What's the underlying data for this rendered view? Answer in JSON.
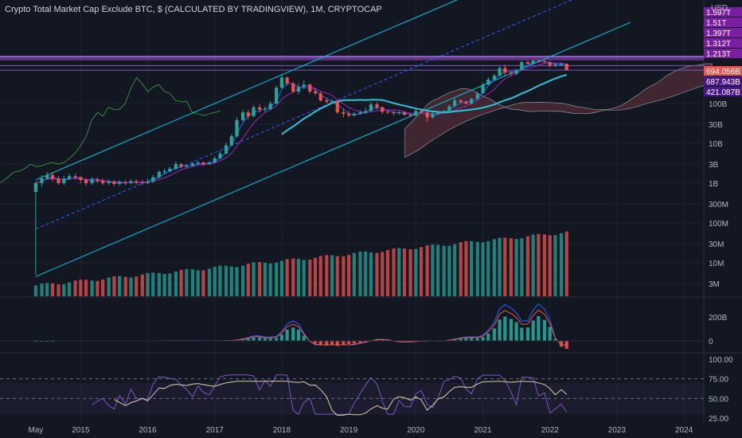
{
  "title": "Crypto Total Market Cap Exclude BTC, $ (CALCULATED BY TRADINGVIEW), 1M, CRYPTOCAP",
  "currency": "USD",
  "colors": {
    "background": "#131722",
    "grid": "#1e222d",
    "up": "#26a69a",
    "down": "#ef5350",
    "channel": "#00bcd4",
    "ichimoku_lagging": "#4caf50",
    "cloud": "#4a2a35",
    "resistance_band": "#9c4dcc",
    "ma_long": "#26c6da",
    "ma_short": "#2962ff",
    "ma_mid": "#9c27b0",
    "macd": "#2962ff",
    "signal": "#ef5350",
    "rsi": "#7e57c2",
    "rsi_ma": "#e0d0a8"
  },
  "price_badges": [
    {
      "label": "1.597T",
      "color": "#7b1fa2"
    },
    {
      "label": "1.51T",
      "color": "#7b1fa2"
    },
    {
      "label": "1.397T",
      "color": "#7b1fa2"
    },
    {
      "label": "1.312T",
      "color": "#7b1fa2"
    },
    {
      "label": "1.213T",
      "color": "#7b1fa2"
    },
    {
      "label": "694.056B",
      "color": "#ef5350"
    },
    {
      "label": "687.943B",
      "color": "#4a148c"
    },
    {
      "label": "421.087B",
      "color": "#4a148c"
    }
  ],
  "macd_ticks": [
    "200B",
    "0"
  ],
  "rsi_ticks": [
    "100.00",
    "75.00",
    "50.00",
    "25.00"
  ],
  "chart_data": [
    {
      "type": "candlestick",
      "scale": "log",
      "ylabel": "USD",
      "yticks": [
        "100B",
        "30B",
        "10B",
        "3B",
        "1B",
        "300M",
        "100M",
        "30M",
        "10M",
        "3M"
      ],
      "x_ticks": [
        "May",
        "2015",
        "2016",
        "2017",
        "2018",
        "2019",
        "2020",
        "2021",
        "2022",
        "2023",
        "2024"
      ],
      "timeframe": "1M",
      "range_usd": [
        "3M",
        "1.6T"
      ],
      "last_close": "694.056B",
      "monthly_candles": [
        [
          2014.33,
          0.6,
          1.0,
          0.005,
          1.1
        ],
        [
          2014.42,
          1.0,
          1.3,
          0.8,
          1.6
        ],
        [
          2014.5,
          1.3,
          1.6,
          1.2,
          1.9
        ],
        [
          2014.58,
          1.6,
          1.3,
          1.1,
          1.8
        ],
        [
          2014.67,
          1.3,
          1.0,
          0.9,
          1.5
        ],
        [
          2014.75,
          1.0,
          1.3,
          0.9,
          1.5
        ],
        [
          2014.83,
          1.3,
          1.5,
          1.2,
          1.7
        ],
        [
          2014.92,
          1.5,
          1.4,
          1.2,
          1.7
        ],
        [
          2015.0,
          1.4,
          1.2,
          1.0,
          1.5
        ],
        [
          2015.08,
          1.2,
          1.0,
          0.85,
          1.35
        ],
        [
          2015.17,
          1.0,
          1.25,
          0.9,
          1.4
        ],
        [
          2015.25,
          1.25,
          1.15,
          1.0,
          1.4
        ],
        [
          2015.33,
          1.15,
          1.0,
          0.9,
          1.3
        ],
        [
          2015.42,
          1.0,
          1.1,
          0.9,
          1.25
        ],
        [
          2015.5,
          1.1,
          0.95,
          0.85,
          1.2
        ],
        [
          2015.58,
          0.95,
          1.05,
          0.85,
          1.2
        ],
        [
          2015.67,
          1.05,
          1.0,
          0.9,
          1.2
        ],
        [
          2015.75,
          1.0,
          1.12,
          0.92,
          1.25
        ],
        [
          2015.83,
          1.12,
          1.05,
          0.9,
          1.25
        ],
        [
          2015.92,
          1.05,
          1.0,
          0.9,
          1.2
        ],
        [
          2016.0,
          1.0,
          1.1,
          0.95,
          1.3
        ],
        [
          2016.08,
          1.1,
          1.4,
          1.0,
          1.6
        ],
        [
          2016.17,
          1.4,
          1.9,
          1.3,
          2.1
        ],
        [
          2016.25,
          1.9,
          2.0,
          1.7,
          2.3
        ],
        [
          2016.33,
          2.0,
          2.3,
          1.9,
          2.6
        ],
        [
          2016.42,
          2.3,
          3.0,
          2.2,
          3.5
        ],
        [
          2016.5,
          3.0,
          2.6,
          2.4,
          3.2
        ],
        [
          2016.58,
          2.6,
          2.7,
          2.4,
          3.0
        ],
        [
          2016.67,
          2.7,
          3.1,
          2.6,
          3.4
        ],
        [
          2016.75,
          3.1,
          3.3,
          2.9,
          3.6
        ],
        [
          2016.83,
          3.3,
          3.0,
          2.7,
          3.5
        ],
        [
          2016.92,
          3.0,
          3.3,
          2.9,
          3.6
        ],
        [
          2017.0,
          3.3,
          4.2,
          3.1,
          4.8
        ],
        [
          2017.08,
          4.2,
          5.5,
          4.0,
          6.5
        ],
        [
          2017.17,
          5.5,
          9.0,
          5.3,
          10.5
        ],
        [
          2017.25,
          9.0,
          15.0,
          8.5,
          17.0
        ],
        [
          2017.33,
          15.0,
          38.0,
          14.0,
          45.0
        ],
        [
          2017.42,
          38.0,
          60.0,
          35.0,
          70.0
        ],
        [
          2017.5,
          60.0,
          48.0,
          40.0,
          70.0
        ],
        [
          2017.58,
          48.0,
          80.0,
          45.0,
          90.0
        ],
        [
          2017.67,
          80.0,
          70.0,
          60.0,
          95.0
        ],
        [
          2017.75,
          70.0,
          72.0,
          60.0,
          85.0
        ],
        [
          2017.83,
          72.0,
          100.0,
          68.0,
          115.0
        ],
        [
          2017.92,
          100.0,
          250.0,
          95.0,
          280.0
        ],
        [
          2018.0,
          250.0,
          450.0,
          240.0,
          560.0
        ],
        [
          2018.08,
          450.0,
          320.0,
          280.0,
          480.0
        ],
        [
          2018.17,
          320.0,
          200.0,
          180.0,
          350.0
        ],
        [
          2018.25,
          200.0,
          260.0,
          170.0,
          320.0
        ],
        [
          2018.33,
          260.0,
          300.0,
          230.0,
          380.0
        ],
        [
          2018.42,
          300.0,
          200.0,
          180.0,
          320.0
        ],
        [
          2018.5,
          200.0,
          180.0,
          160.0,
          240.0
        ],
        [
          2018.58,
          180.0,
          120.0,
          110.0,
          200.0
        ],
        [
          2018.67,
          120.0,
          110.0,
          100.0,
          140.0
        ],
        [
          2018.75,
          110.0,
          115.0,
          100.0,
          130.0
        ],
        [
          2018.83,
          115.0,
          60.0,
          55.0,
          120.0
        ],
        [
          2018.92,
          60.0,
          55.0,
          45.0,
          75.0
        ],
        [
          2019.0,
          55.0,
          50.0,
          45.0,
          65.0
        ],
        [
          2019.08,
          50.0,
          55.0,
          48.0,
          62.0
        ],
        [
          2019.17,
          55.0,
          60.0,
          52.0,
          68.0
        ],
        [
          2019.25,
          60.0,
          65.0,
          55.0,
          80.0
        ],
        [
          2019.33,
          65.0,
          95.0,
          62.0,
          110.0
        ],
        [
          2019.42,
          95.0,
          80.0,
          70.0,
          110.0
        ],
        [
          2019.5,
          80.0,
          62.0,
          55.0,
          85.0
        ],
        [
          2019.58,
          62.0,
          60.0,
          55.0,
          68.0
        ],
        [
          2019.67,
          60.0,
          58.0,
          50.0,
          66.0
        ],
        [
          2019.75,
          58.0,
          60.0,
          52.0,
          65.0
        ],
        [
          2019.83,
          60.0,
          52.0,
          50.0,
          65.0
        ],
        [
          2019.92,
          52.0,
          50.0,
          45.0,
          55.0
        ],
        [
          2020.0,
          50.0,
          65.0,
          48.0,
          72.0
        ],
        [
          2020.08,
          65.0,
          60.0,
          55.0,
          75.0
        ],
        [
          2020.17,
          60.0,
          45.0,
          35.0,
          62.0
        ],
        [
          2020.25,
          45.0,
          55.0,
          42.0,
          60.0
        ],
        [
          2020.33,
          55.0,
          60.0,
          52.0,
          65.0
        ],
        [
          2020.42,
          60.0,
          65.0,
          55.0,
          70.0
        ],
        [
          2020.5,
          65.0,
          85.0,
          62.0,
          95.0
        ],
        [
          2020.58,
          85.0,
          120.0,
          82.0,
          140.0
        ],
        [
          2020.67,
          120.0,
          110.0,
          100.0,
          130.0
        ],
        [
          2020.75,
          110.0,
          100.0,
          95.0,
          120.0
        ],
        [
          2020.83,
          100.0,
          130.0,
          95.0,
          140.0
        ],
        [
          2020.92,
          130.0,
          180.0,
          125.0,
          200.0
        ],
        [
          2021.0,
          180.0,
          300.0,
          175.0,
          340.0
        ],
        [
          2021.08,
          300.0,
          400.0,
          290.0,
          460.0
        ],
        [
          2021.17,
          400.0,
          500.0,
          380.0,
          560.0
        ],
        [
          2021.25,
          500.0,
          780.0,
          480.0,
          850.0
        ],
        [
          2021.33,
          780.0,
          600.0,
          500.0,
          950.0
        ],
        [
          2021.42,
          600.0,
          560.0,
          480.0,
          650.0
        ],
        [
          2021.5,
          560.0,
          700.0,
          520.0,
          740.0
        ],
        [
          2021.58,
          700.0,
          1100.0,
          680.0,
          1150.0
        ],
        [
          2021.67,
          1100.0,
          1000.0,
          950.0,
          1200.0
        ],
        [
          2021.75,
          1000.0,
          1200.0,
          980.0,
          1250.0
        ],
        [
          2021.83,
          1200.0,
          1150.0,
          1050.0,
          1300.0
        ],
        [
          2021.92,
          1150.0,
          1100.0,
          1000.0,
          1250.0
        ],
        [
          2022.0,
          1100.0,
          900.0,
          800.0,
          1150.0
        ],
        [
          2022.08,
          900.0,
          950.0,
          820.0,
          1050.0
        ],
        [
          2022.17,
          950.0,
          1000.0,
          880.0,
          1060.0
        ],
        [
          2022.25,
          1000.0,
          694.0,
          680.0,
          1010.0
        ]
      ]
    }
  ]
}
